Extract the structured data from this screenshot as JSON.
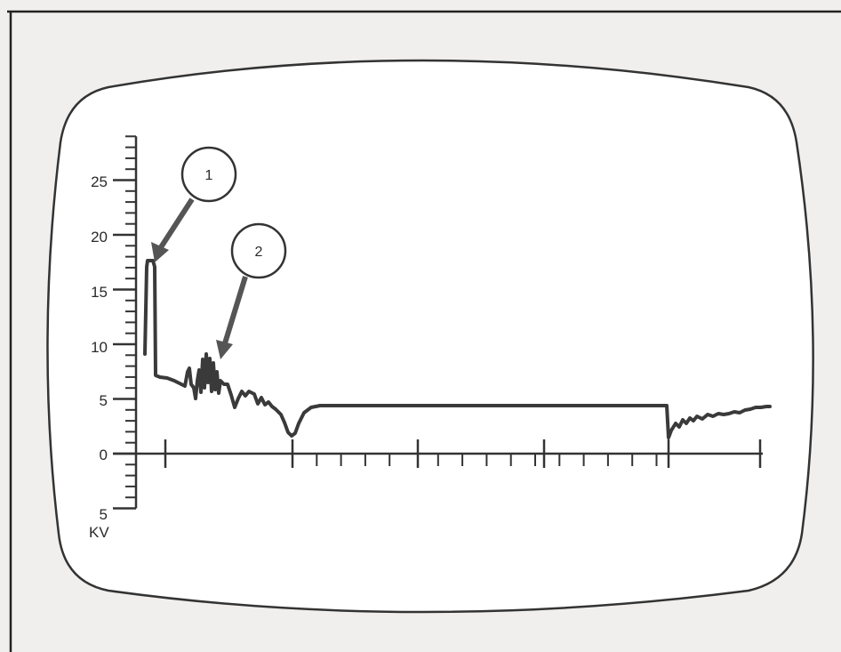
{
  "chart_data": {
    "type": "line",
    "ylabel": "KV",
    "y_tick_labels": [
      "25",
      "20",
      "15",
      "10",
      "5",
      "0",
      "5"
    ],
    "y_tick_values": [
      25,
      20,
      15,
      10,
      5,
      0,
      -5
    ],
    "ylim": [
      -5,
      29
    ],
    "grid": false,
    "callouts": [
      {
        "number": "1"
      },
      {
        "number": "2"
      }
    ],
    "colors": {
      "background": "#f1efed",
      "screen": "#ffffff",
      "ink": "#333333",
      "trace": "#3a3a3a"
    }
  }
}
